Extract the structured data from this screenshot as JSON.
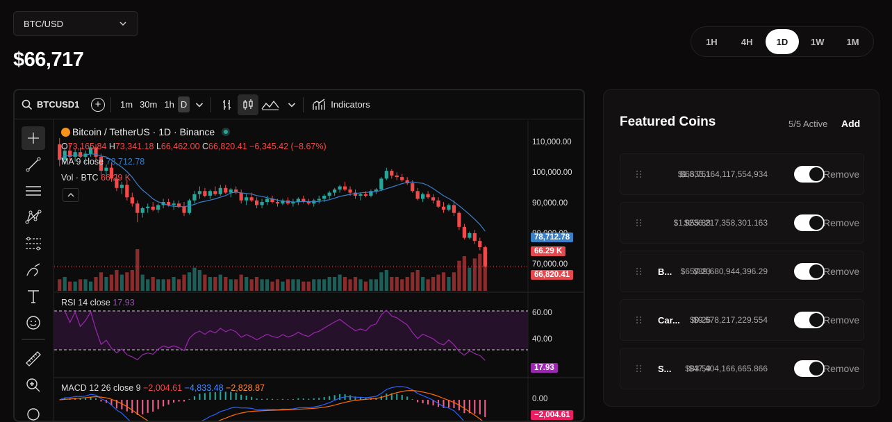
{
  "pair_select": {
    "value": "BTC/USD"
  },
  "price": "$66,717",
  "timeframes": [
    {
      "label": "1H",
      "active": false
    },
    {
      "label": "4H",
      "active": false
    },
    {
      "label": "1D",
      "active": true
    },
    {
      "label": "1W",
      "active": false
    },
    {
      "label": "1M",
      "active": false
    }
  ],
  "tv_toolbar": {
    "symbol": "BTCUSD1",
    "intervals": [
      "1m",
      "30m",
      "1h",
      "D"
    ],
    "active_interval": "D",
    "indicators_label": "Indicators"
  },
  "chart_header": {
    "title": "Bitcoin / TetherUS · 1D · Binance",
    "ohlc": {
      "o_label": "O",
      "o": "73,165.84",
      "h_label": "H",
      "h": "73,341.18",
      "l_label": "L",
      "l": "66,462.00",
      "c_label": "C",
      "c": "66,820.41",
      "change": "−6,345.42 (−8.67%)"
    },
    "ma": {
      "label": "MA 9 close",
      "value": "78,712.78"
    },
    "vol": {
      "label": "Vol · BTC",
      "value": "66.29 K"
    }
  },
  "price_axis": [
    "110,000.00",
    "100,000.00",
    "90,000.00",
    "80,000.00",
    "70,000.00"
  ],
  "price_tags": {
    "ma": "78,712.78",
    "vol": "66.29 K",
    "last": "66,820.41"
  },
  "rsi": {
    "label": "RSI 14 close",
    "value": "17.93",
    "axis": [
      "60.00",
      "40.00"
    ]
  },
  "macd": {
    "label": "MACD 12 26 close 9",
    "v1": "−2,004.61",
    "v2": "−4,833.48",
    "v3": "−2,828.87",
    "axis": "0.00",
    "tag": "−2,004.61"
  },
  "colors": {
    "up": "#26a69a",
    "down": "#f24a4a",
    "ma": "#3b7fc7",
    "rsi": "#9c27b0",
    "macd": "#2962ff",
    "signal": "#ff6d00"
  },
  "chart_data": {
    "type": "candlestick",
    "ylim": [
      63000,
      112000
    ],
    "candles": [
      [
        106000,
        108000,
        99000,
        101000
      ],
      [
        101000,
        105000,
        100000,
        104000
      ],
      [
        104000,
        106000,
        101000,
        102000
      ],
      [
        102000,
        104500,
        100500,
        103500
      ],
      [
        103500,
        105000,
        101500,
        102000
      ],
      [
        102000,
        104000,
        100000,
        103000
      ],
      [
        103000,
        106000,
        102000,
        105000
      ],
      [
        105000,
        106000,
        101000,
        102000
      ],
      [
        102000,
        103000,
        96000,
        97500
      ],
      [
        97500,
        99500,
        95500,
        98500
      ],
      [
        98500,
        100000,
        94000,
        95000
      ],
      [
        95000,
        96500,
        91000,
        92000
      ],
      [
        92000,
        94000,
        90000,
        93000
      ],
      [
        93000,
        94500,
        88000,
        89000
      ],
      [
        89000,
        90500,
        86000,
        87000
      ],
      [
        87000,
        88000,
        81000,
        84000
      ],
      [
        84000,
        86000,
        82500,
        85500
      ],
      [
        85500,
        87000,
        84000,
        86000
      ],
      [
        86000,
        87500,
        84500,
        85000
      ],
      [
        85000,
        87000,
        84000,
        86500
      ],
      [
        86500,
        88500,
        85500,
        87500
      ],
      [
        87500,
        88500,
        86000,
        86500
      ],
      [
        86500,
        88000,
        85000,
        87000
      ],
      [
        87000,
        88000,
        85500,
        86000
      ],
      [
        86000,
        87500,
        83000,
        84000
      ],
      [
        84000,
        88500,
        83500,
        88000
      ],
      [
        88000,
        91000,
        87000,
        90000
      ],
      [
        90000,
        92500,
        88500,
        91000
      ],
      [
        91000,
        92000,
        89000,
        89500
      ],
      [
        89500,
        91500,
        88500,
        91000
      ],
      [
        91000,
        92500,
        89500,
        90000
      ],
      [
        90000,
        93000,
        89500,
        92000
      ],
      [
        92000,
        93000,
        90000,
        90500
      ],
      [
        90500,
        92000,
        89000,
        91500
      ],
      [
        91500,
        92500,
        90000,
        90500
      ],
      [
        90500,
        91500,
        87000,
        88000
      ],
      [
        88000,
        90000,
        86500,
        89000
      ],
      [
        89000,
        90500,
        87500,
        88000
      ],
      [
        88000,
        89000,
        85500,
        86500
      ],
      [
        86500,
        88500,
        85500,
        87500
      ],
      [
        87500,
        89500,
        86500,
        88500
      ],
      [
        88500,
        89500,
        87000,
        87500
      ],
      [
        87500,
        88500,
        86000,
        87000
      ],
      [
        87000,
        88500,
        86500,
        88000
      ],
      [
        88000,
        89000,
        86500,
        87000
      ],
      [
        87000,
        88500,
        86000,
        87500
      ],
      [
        87500,
        89000,
        86500,
        88500
      ],
      [
        88500,
        89500,
        87000,
        87500
      ],
      [
        87500,
        88500,
        86500,
        87000
      ],
      [
        87000,
        88500,
        86000,
        88000
      ],
      [
        88000,
        89500,
        87000,
        88500
      ],
      [
        88500,
        90000,
        87500,
        89500
      ],
      [
        89500,
        91000,
        88500,
        90500
      ],
      [
        90500,
        92000,
        89500,
        91500
      ],
      [
        91500,
        93000,
        90500,
        92500
      ],
      [
        92500,
        94000,
        91000,
        91500
      ],
      [
        91500,
        92500,
        89500,
        90500
      ],
      [
        90500,
        91500,
        88500,
        89500
      ],
      [
        89500,
        90500,
        88000,
        90000
      ],
      [
        90000,
        91000,
        89000,
        89500
      ],
      [
        89500,
        91500,
        89000,
        91000
      ],
      [
        91000,
        92000,
        90000,
        91500
      ],
      [
        91500,
        95500,
        91000,
        95000
      ],
      [
        95000,
        98500,
        94500,
        97500
      ],
      [
        97500,
        98000,
        95000,
        96000
      ],
      [
        96000,
        97000,
        94500,
        95500
      ],
      [
        95500,
        96500,
        94000,
        94500
      ],
      [
        94500,
        95500,
        93000,
        93500
      ],
      [
        93500,
        94500,
        90500,
        91000
      ],
      [
        91000,
        92000,
        88000,
        88500
      ],
      [
        88500,
        90500,
        87500,
        90000
      ],
      [
        90000,
        91000,
        88500,
        89000
      ],
      [
        89000,
        90000,
        87000,
        88000
      ],
      [
        88000,
        89000,
        85500,
        86000
      ],
      [
        86000,
        87500,
        84000,
        85000
      ],
      [
        85000,
        87000,
        84500,
        86500
      ],
      [
        86500,
        88000,
        83000,
        84000
      ],
      [
        84000,
        84500,
        78500,
        79500
      ],
      [
        79500,
        80500,
        75500,
        76000
      ],
      [
        76000,
        78000,
        75500,
        77500
      ],
      [
        77500,
        78500,
        74000,
        75000
      ],
      [
        75000,
        76000,
        72000,
        73000
      ],
      [
        73000,
        73500,
        66500,
        66800
      ]
    ],
    "volume": [
      0.5,
      0.6,
      0.4,
      0.4,
      0.5,
      0.5,
      0.4,
      0.6,
      0.8,
      0.6,
      0.7,
      0.9,
      0.7,
      0.8,
      0.9,
      1.8,
      0.7,
      0.5,
      0.6,
      0.5,
      0.5,
      0.5,
      0.6,
      0.5,
      0.7,
      0.8,
      1.0,
      0.9,
      0.7,
      0.6,
      0.6,
      0.7,
      0.6,
      0.5,
      0.5,
      0.7,
      0.6,
      0.5,
      0.6,
      0.5,
      0.5,
      0.4,
      0.5,
      0.4,
      0.5,
      0.5,
      0.5,
      0.4,
      0.4,
      0.5,
      0.5,
      0.5,
      0.6,
      0.6,
      0.7,
      0.6,
      0.5,
      0.6,
      0.5,
      0.4,
      0.5,
      0.5,
      0.8,
      0.9,
      0.6,
      0.6,
      0.5,
      0.6,
      0.8,
      0.9,
      0.6,
      0.5,
      0.6,
      0.7,
      0.8,
      0.6,
      0.8,
      1.3,
      1.5,
      1.0,
      1.4,
      1.6,
      1.7
    ]
  },
  "featured": {
    "title": "Featured Coins",
    "active_count": "5/5 Active",
    "add_label": "Add",
    "coins": [
      {
        "name": "",
        "price": "$66,751",
        "market_cap": "$1,333,164,117,554,934",
        "remove_label": "Remove"
      },
      {
        "name": "",
        "price": "$1,955.88",
        "market_cap": "$236,217,358,301.163",
        "remove_label": "Remove"
      },
      {
        "name": "B...",
        "price": "$657.23",
        "market_cap": "$89,680,944,396.29",
        "remove_label": "Remove"
      },
      {
        "name": "Car...",
        "price": "$0.26",
        "market_cap": "$9,578,217,229.554",
        "remove_label": "Remove"
      },
      {
        "name": "S...",
        "price": "$83.59",
        "market_cap": "$47,404,166,665.866",
        "remove_label": "Remove"
      }
    ]
  }
}
